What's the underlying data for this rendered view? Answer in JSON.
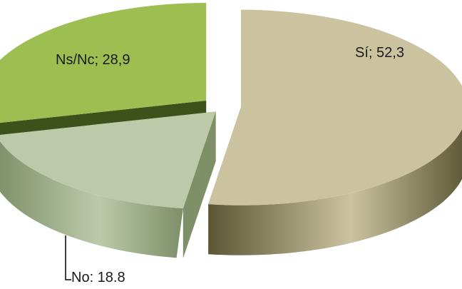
{
  "chart_data": {
    "type": "pie",
    "title": "",
    "slices": [
      {
        "label": "Sí",
        "value": 52.3,
        "display": "Sí; 52,3",
        "top_color": "#cbc3a0",
        "side_color": "#5c5636"
      },
      {
        "label": "No",
        "value": 18.8,
        "display": "No: 18.8",
        "top_color": "#bccaa9",
        "side_color": "#7f8f68"
      },
      {
        "label": "Ns/Nc",
        "value": 28.9,
        "display": "Ns/Nc; 28,9",
        "top_color": "#9dbe50",
        "side_color": "#3d521a"
      }
    ],
    "style": "3d-exploded",
    "legend": "none",
    "grid": false
  }
}
